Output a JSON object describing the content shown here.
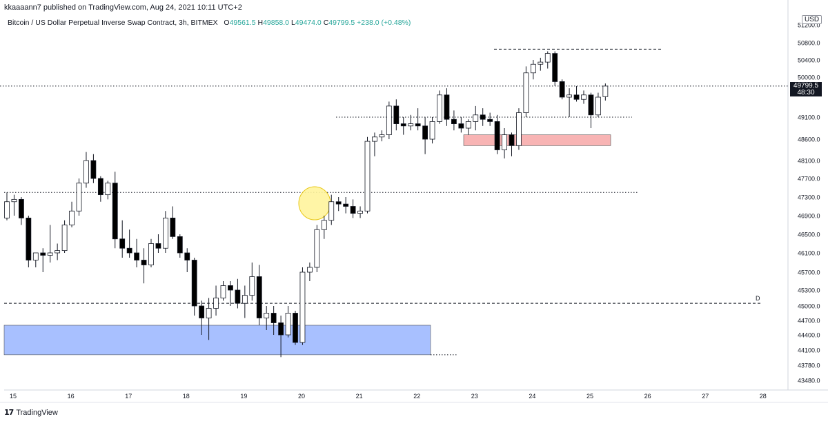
{
  "header": {
    "published_by": "kkaaaann7 published on TradingView.com, Aug 24, 2021 10:11 UTC+2"
  },
  "legend": {
    "title": "Bitcoin / US Dollar Perpetual Inverse Swap Contract, 3h, BITMEX",
    "open_label": "O",
    "open": "49561.5",
    "high_label": "H",
    "high": "49858.0",
    "low_label": "L",
    "low": "49474.0",
    "close_label": "C",
    "close": "49799.5",
    "change": "+238.0 (+0.48%)"
  },
  "price_axis": {
    "currency": "USD",
    "last_price": "49799.5",
    "countdown": "48:30",
    "ticks": [
      "51200.0",
      "50800.0",
      "50400.0",
      "50000.0",
      "49100.0",
      "48600.0",
      "48100.0",
      "47700.0",
      "47300.0",
      "46900.0",
      "46500.0",
      "46100.0",
      "45700.0",
      "45300.0",
      "45000.0",
      "44700.0",
      "44400.0",
      "44100.0",
      "43780.0",
      "43480.0"
    ]
  },
  "time_axis": {
    "ticks": [
      "15",
      "16",
      "17",
      "18",
      "19",
      "20",
      "21",
      "22",
      "23",
      "24",
      "25",
      "26",
      "27",
      "28"
    ]
  },
  "annotations": {
    "d_label": "D"
  },
  "footer": {
    "logo_glyph": "17",
    "brand": "TradingView"
  },
  "colors": {
    "up_candle": "#ffffff",
    "down_candle": "#000000",
    "demand_zone": "#a8c0ff",
    "supply_zone": "#f8b4b4",
    "highlight_circle": "#fff59d"
  },
  "chart_data": {
    "type": "candlestick",
    "title": "Bitcoin / US Dollar Perpetual Inverse Swap Contract, 3h, BITMEX",
    "ylim": [
      43300,
      51400
    ],
    "x_ticks": [
      "15",
      "16",
      "17",
      "18",
      "19",
      "20",
      "21",
      "22",
      "23",
      "24",
      "25",
      "26",
      "27",
      "28"
    ],
    "candles": [
      {
        "o": 46850,
        "h": 47400,
        "l": 46800,
        "c": 47200
      },
      {
        "o": 47200,
        "h": 47350,
        "l": 46900,
        "c": 47250
      },
      {
        "o": 47250,
        "h": 47300,
        "l": 46700,
        "c": 46850
      },
      {
        "o": 46850,
        "h": 46900,
        "l": 45800,
        "c": 45950
      },
      {
        "o": 45950,
        "h": 46100,
        "l": 45800,
        "c": 46100
      },
      {
        "o": 46100,
        "h": 46200,
        "l": 45700,
        "c": 46050
      },
      {
        "o": 46050,
        "h": 46700,
        "l": 45900,
        "c": 46100
      },
      {
        "o": 46100,
        "h": 46300,
        "l": 45950,
        "c": 46150
      },
      {
        "o": 46150,
        "h": 46800,
        "l": 46100,
        "c": 46700
      },
      {
        "o": 46700,
        "h": 47200,
        "l": 46650,
        "c": 47000
      },
      {
        "o": 47000,
        "h": 47700,
        "l": 46900,
        "c": 47600
      },
      {
        "o": 47600,
        "h": 48300,
        "l": 47500,
        "c": 48100
      },
      {
        "o": 48100,
        "h": 48250,
        "l": 47600,
        "c": 47700
      },
      {
        "o": 47700,
        "h": 47750,
        "l": 47200,
        "c": 47350
      },
      {
        "o": 47350,
        "h": 47650,
        "l": 47250,
        "c": 47600
      },
      {
        "o": 47600,
        "h": 47850,
        "l": 46200,
        "c": 46400
      },
      {
        "o": 46400,
        "h": 46800,
        "l": 46000,
        "c": 46200
      },
      {
        "o": 46200,
        "h": 46600,
        "l": 46000,
        "c": 46100
      },
      {
        "o": 46100,
        "h": 46400,
        "l": 45800,
        "c": 45950
      },
      {
        "o": 45950,
        "h": 46200,
        "l": 45450,
        "c": 45850
      },
      {
        "o": 45850,
        "h": 46400,
        "l": 45800,
        "c": 46300
      },
      {
        "o": 46300,
        "h": 46500,
        "l": 46100,
        "c": 46200
      },
      {
        "o": 46200,
        "h": 47000,
        "l": 46100,
        "c": 46850
      },
      {
        "o": 46850,
        "h": 47100,
        "l": 46400,
        "c": 46450
      },
      {
        "o": 46450,
        "h": 46500,
        "l": 46000,
        "c": 46100
      },
      {
        "o": 46100,
        "h": 46200,
        "l": 45700,
        "c": 45950
      },
      {
        "o": 45950,
        "h": 46000,
        "l": 44800,
        "c": 45000
      },
      {
        "o": 45000,
        "h": 45100,
        "l": 44400,
        "c": 44750
      },
      {
        "o": 44750,
        "h": 45150,
        "l": 44300,
        "c": 44950
      },
      {
        "o": 44950,
        "h": 45400,
        "l": 44800,
        "c": 45150
      },
      {
        "o": 45150,
        "h": 45500,
        "l": 45100,
        "c": 45400
      },
      {
        "o": 45400,
        "h": 45500,
        "l": 45000,
        "c": 45300
      },
      {
        "o": 45300,
        "h": 45550,
        "l": 44950,
        "c": 45050
      },
      {
        "o": 45050,
        "h": 45400,
        "l": 44750,
        "c": 45200
      },
      {
        "o": 45200,
        "h": 45900,
        "l": 45100,
        "c": 45600
      },
      {
        "o": 45600,
        "h": 45850,
        "l": 44600,
        "c": 44750
      },
      {
        "o": 44750,
        "h": 45000,
        "l": 44500,
        "c": 44850
      },
      {
        "o": 44850,
        "h": 45000,
        "l": 44400,
        "c": 44650
      },
      {
        "o": 44650,
        "h": 44800,
        "l": 43950,
        "c": 44400
      },
      {
        "o": 44400,
        "h": 45000,
        "l": 44350,
        "c": 44850
      },
      {
        "o": 44850,
        "h": 44900,
        "l": 44200,
        "c": 44250
      },
      {
        "o": 44250,
        "h": 45800,
        "l": 44200,
        "c": 45700
      },
      {
        "o": 45700,
        "h": 45900,
        "l": 45500,
        "c": 45800
      },
      {
        "o": 45800,
        "h": 46700,
        "l": 45700,
        "c": 46600
      },
      {
        "o": 46600,
        "h": 46900,
        "l": 46400,
        "c": 46800
      },
      {
        "o": 46800,
        "h": 47350,
        "l": 46700,
        "c": 47200
      },
      {
        "o": 47200,
        "h": 47300,
        "l": 47000,
        "c": 47150
      },
      {
        "o": 47150,
        "h": 47300,
        "l": 46950,
        "c": 47100
      },
      {
        "o": 47100,
        "h": 47250,
        "l": 46850,
        "c": 46950
      },
      {
        "o": 46950,
        "h": 47100,
        "l": 46850,
        "c": 47000
      },
      {
        "o": 47000,
        "h": 48650,
        "l": 46950,
        "c": 48550
      },
      {
        "o": 48550,
        "h": 48750,
        "l": 48200,
        "c": 48650
      },
      {
        "o": 48650,
        "h": 48800,
        "l": 48550,
        "c": 48700
      },
      {
        "o": 48700,
        "h": 49450,
        "l": 48600,
        "c": 49350
      },
      {
        "o": 49350,
        "h": 49500,
        "l": 48800,
        "c": 48950
      },
      {
        "o": 48950,
        "h": 49100,
        "l": 48700,
        "c": 48900
      },
      {
        "o": 48900,
        "h": 49150,
        "l": 48800,
        "c": 48950
      },
      {
        "o": 48950,
        "h": 49300,
        "l": 48800,
        "c": 48900
      },
      {
        "o": 48900,
        "h": 49100,
        "l": 48250,
        "c": 48600
      },
      {
        "o": 48600,
        "h": 49100,
        "l": 48500,
        "c": 49000
      },
      {
        "o": 49000,
        "h": 49700,
        "l": 48950,
        "c": 49600
      },
      {
        "o": 49600,
        "h": 49750,
        "l": 48900,
        "c": 49050
      },
      {
        "o": 49050,
        "h": 49250,
        "l": 48800,
        "c": 48950
      },
      {
        "o": 48950,
        "h": 49100,
        "l": 48750,
        "c": 48850
      },
      {
        "o": 48850,
        "h": 49050,
        "l": 48700,
        "c": 49000
      },
      {
        "o": 49000,
        "h": 49350,
        "l": 48800,
        "c": 49150
      },
      {
        "o": 49150,
        "h": 49300,
        "l": 48900,
        "c": 49050
      },
      {
        "o": 49050,
        "h": 49200,
        "l": 48900,
        "c": 49000
      },
      {
        "o": 49000,
        "h": 49150,
        "l": 48250,
        "c": 48350
      },
      {
        "o": 48350,
        "h": 48850,
        "l": 48150,
        "c": 48700
      },
      {
        "o": 48700,
        "h": 48750,
        "l": 48200,
        "c": 48450
      },
      {
        "o": 48450,
        "h": 49300,
        "l": 48350,
        "c": 49200
      },
      {
        "o": 49200,
        "h": 50250,
        "l": 49100,
        "c": 50100
      },
      {
        "o": 50100,
        "h": 50400,
        "l": 49950,
        "c": 50300
      },
      {
        "o": 50300,
        "h": 50450,
        "l": 50150,
        "c": 50350
      },
      {
        "o": 50350,
        "h": 50600,
        "l": 50200,
        "c": 50550
      },
      {
        "o": 50550,
        "h": 50600,
        "l": 49800,
        "c": 49900
      },
      {
        "o": 49900,
        "h": 49950,
        "l": 49500,
        "c": 49550
      },
      {
        "o": 49550,
        "h": 49750,
        "l": 49100,
        "c": 49600
      },
      {
        "o": 49600,
        "h": 49800,
        "l": 49450,
        "c": 49500
      },
      {
        "o": 49500,
        "h": 49700,
        "l": 49400,
        "c": 49600
      },
      {
        "o": 49600,
        "h": 49650,
        "l": 48850,
        "c": 49150
      },
      {
        "o": 49150,
        "h": 49650,
        "l": 49100,
        "c": 49550
      },
      {
        "o": 49561.5,
        "h": 49858,
        "l": 49474,
        "c": 49799.5
      }
    ],
    "horizontal_lines": [
      {
        "price": 50650,
        "style": "dashed"
      },
      {
        "price": 49799.5,
        "style": "dotted"
      },
      {
        "price": 49100,
        "style": "dotted"
      },
      {
        "price": 47400,
        "style": "dotted"
      },
      {
        "price": 45050,
        "style": "dashed"
      },
      {
        "price": 44000,
        "style": "dotted"
      }
    ],
    "zones": [
      {
        "name": "demand-zone",
        "price_top": 44600,
        "price_bottom": 44000
      },
      {
        "name": "supply-zone",
        "price_top": 48700,
        "price_bottom": 48450
      }
    ]
  }
}
